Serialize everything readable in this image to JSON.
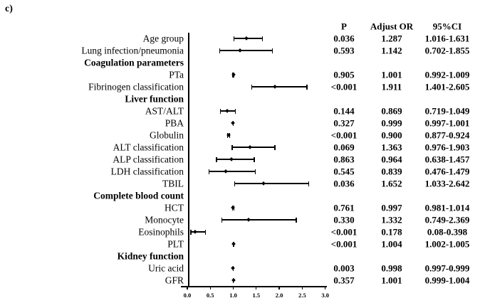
{
  "panel_label": "c)",
  "colors": {
    "foreground": "#000000",
    "background": "#ffffff"
  },
  "chart_data": {
    "type": "forest",
    "title": "",
    "legend": "none",
    "columns": [
      "P",
      "Adjust OR",
      "95%CI"
    ],
    "x_axis": {
      "min": 0.0,
      "max": 3.0,
      "ticks": [
        "0.0",
        "0.5",
        "1.0",
        "1.5",
        "2.0",
        "2.5",
        "3.0"
      ]
    },
    "rows": [
      {
        "label": "Age group",
        "p": "0.036",
        "or": "1.287",
        "ci": "1.016-1.631",
        "or_value": 1.287,
        "ci_low": 1.016,
        "ci_high": 1.631
      },
      {
        "label": "Lung infection/pneumonia",
        "p": "0.593",
        "or": "1.142",
        "ci": "0.702-1.855",
        "or_value": 1.142,
        "ci_low": 0.702,
        "ci_high": 1.855
      },
      {
        "label": "Coagulation parameters",
        "section": true
      },
      {
        "label": "PTa",
        "p": "0.905",
        "or": "1.001",
        "ci": "0.992-1.009",
        "or_value": 1.001,
        "ci_low": 0.992,
        "ci_high": 1.009
      },
      {
        "label": "Fibrinogen classification",
        "p": "<0.001",
        "or": "1.911",
        "ci": "1.401-2.605",
        "or_value": 1.911,
        "ci_low": 1.401,
        "ci_high": 2.605
      },
      {
        "label": "Liver function",
        "section": true
      },
      {
        "label": "AST/ALT",
        "p": "0.144",
        "or": "0.869",
        "ci": "0.719-1.049",
        "or_value": 0.869,
        "ci_low": 0.719,
        "ci_high": 1.049
      },
      {
        "label": "PBA",
        "p": "0.327",
        "or": "0.999",
        "ci": "0.997-1.001",
        "or_value": 0.999,
        "ci_low": 0.997,
        "ci_high": 1.001
      },
      {
        "label": "Globulin",
        "p": "<0.001",
        "or": "0.900",
        "ci": "0.877-0.924",
        "or_value": 0.9,
        "ci_low": 0.877,
        "ci_high": 0.924
      },
      {
        "label": "ALT classification",
        "p": "0.069",
        "or": "1.363",
        "ci": "0.976-1.903",
        "or_value": 1.363,
        "ci_low": 0.976,
        "ci_high": 1.903
      },
      {
        "label": "ALP classification",
        "p": "0.863",
        "or": "0.964",
        "ci": "0.638-1.457",
        "or_value": 0.964,
        "ci_low": 0.638,
        "ci_high": 1.457
      },
      {
        "label": "LDH classification",
        "p": "0.545",
        "or": "0.839",
        "ci": "0.476-1.479",
        "or_value": 0.839,
        "ci_low": 0.476,
        "ci_high": 1.479
      },
      {
        "label": "TBIL",
        "p": "0.036",
        "or": "1.652",
        "ci": "1.033-2.642",
        "or_value": 1.652,
        "ci_low": 1.033,
        "ci_high": 2.642
      },
      {
        "label": "Complete blood count",
        "section": true
      },
      {
        "label": "HCT",
        "p": "0.761",
        "or": "0.997",
        "ci": "0.981-1.014",
        "or_value": 0.997,
        "ci_low": 0.981,
        "ci_high": 1.014
      },
      {
        "label": "Monocyte",
        "p": "0.330",
        "or": "1.332",
        "ci": "0.749-2.369",
        "or_value": 1.332,
        "ci_low": 0.749,
        "ci_high": 2.369
      },
      {
        "label": "Eosinophils",
        "p": "<0.001",
        "or": "0.178",
        "ci": "0.08-0.398",
        "or_value": 0.178,
        "ci_low": 0.08,
        "ci_high": 0.398
      },
      {
        "label": "PLT",
        "p": "<0.001",
        "or": "1.004",
        "ci": "1.002-1.005",
        "or_value": 1.004,
        "ci_low": 1.002,
        "ci_high": 1.005
      },
      {
        "label": "Kidney function",
        "section": true
      },
      {
        "label": "Uric acid",
        "p": "0.003",
        "or": "0.998",
        "ci": "0.997-0.999",
        "or_value": 0.998,
        "ci_low": 0.997,
        "ci_high": 0.999
      },
      {
        "label": "GFR",
        "p": "0.357",
        "or": "1.001",
        "ci": "0.999-1.004",
        "or_value": 1.001,
        "ci_low": 0.999,
        "ci_high": 1.004
      }
    ]
  }
}
